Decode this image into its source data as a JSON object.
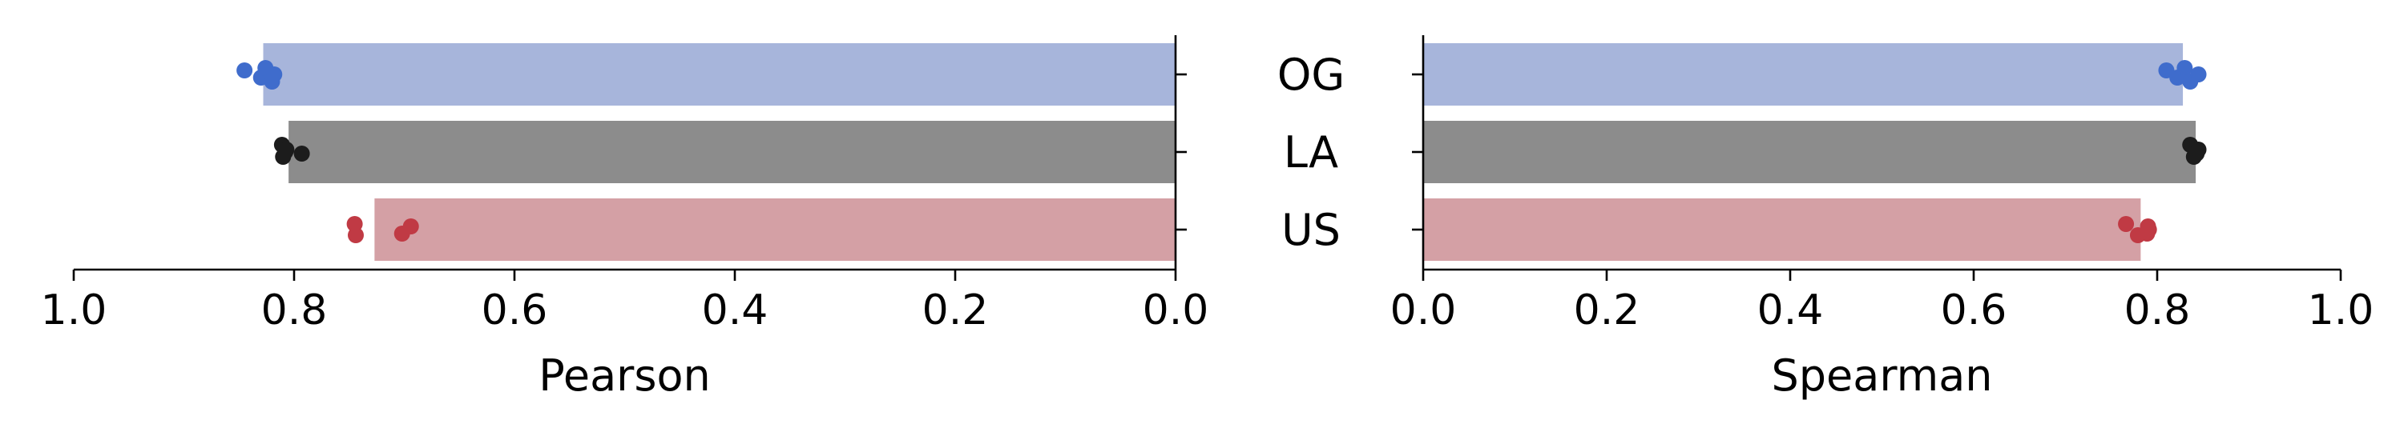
{
  "chart_data": [
    {
      "type": "bar",
      "orientation": "horizontal",
      "categories": [
        "OG",
        "LA",
        "US"
      ],
      "values": [
        0.828,
        0.805,
        0.727
      ],
      "points": [
        [
          0.845,
          0.83,
          0.826,
          0.82,
          0.818
        ],
        [
          0.811,
          0.81,
          0.808,
          0.807,
          0.793
        ],
        [
          0.745,
          0.744,
          0.702,
          0.694
        ]
      ],
      "xlabel": "Pearson",
      "xlim": [
        1.0,
        0.0
      ],
      "xticks": [
        "1.0",
        "0.8",
        "0.6",
        "0.4",
        "0.2",
        "0.0"
      ],
      "xtick_values": [
        1.0,
        0.8,
        0.6,
        0.4,
        0.2,
        0.0
      ],
      "grid": false
    },
    {
      "type": "bar",
      "orientation": "horizontal",
      "categories": [
        "OG",
        "LA",
        "US"
      ],
      "values": [
        0.828,
        0.842,
        0.782
      ],
      "points": [
        [
          0.81,
          0.822,
          0.83,
          0.836,
          0.845
        ],
        [
          0.836,
          0.84,
          0.843,
          0.845,
          0.843
        ],
        [
          0.766,
          0.779,
          0.789,
          0.79,
          0.791
        ]
      ],
      "xlabel": "Spearman",
      "xlim": [
        0.0,
        1.0
      ],
      "xticks": [
        "0.0",
        "0.2",
        "0.4",
        "0.6",
        "0.8",
        "1.0"
      ],
      "xtick_values": [
        0.0,
        0.2,
        0.4,
        0.6,
        0.8,
        1.0
      ],
      "grid": false
    }
  ],
  "colors": {
    "bars": [
      "#a7b5db",
      "#8c8c8c",
      "#d4a0a5"
    ],
    "points": [
      "#3f6ccc",
      "#1c1c1c",
      "#c03a44"
    ]
  }
}
